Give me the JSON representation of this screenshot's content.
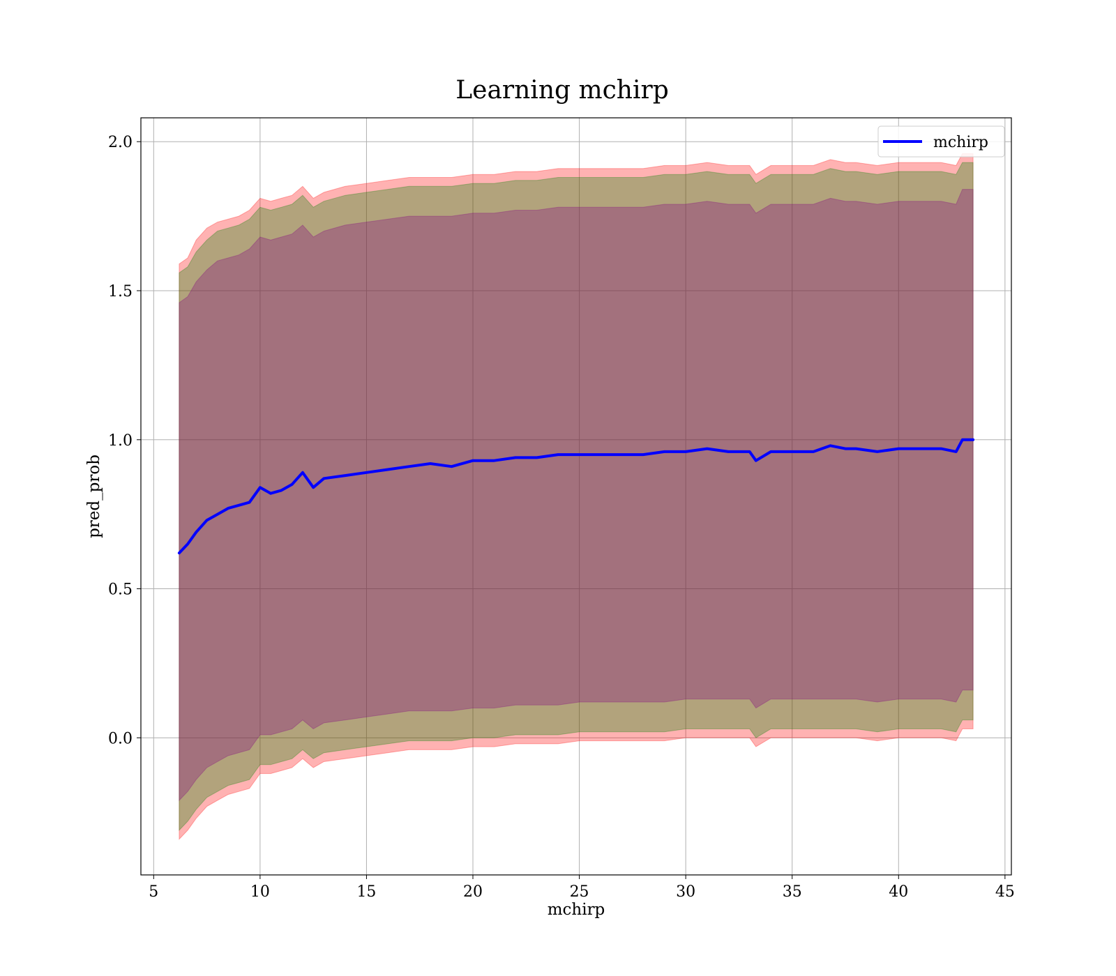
{
  "chart_data": {
    "type": "line",
    "title": "Learning mchirp",
    "xlabel": "mchirp",
    "ylabel": "pred_prob",
    "xlim": [
      4.4,
      45.3
    ],
    "ylim": [
      -0.46,
      2.08
    ],
    "xticks": [
      5,
      10,
      15,
      20,
      25,
      30,
      35,
      40,
      45
    ],
    "xtick_labels": [
      "5",
      "10",
      "15",
      "20",
      "25",
      "30",
      "35",
      "40",
      "45"
    ],
    "yticks": [
      0.0,
      0.5,
      1.0,
      1.5,
      2.0
    ],
    "ytick_labels": [
      "0.0",
      "0.5",
      "1.0",
      "1.5",
      "2.0"
    ],
    "grid": true,
    "legend": {
      "position": "upper right",
      "entries": [
        {
          "label": "mchirp",
          "color": "#0000ff"
        }
      ]
    },
    "series": [
      {
        "name": "mchirp",
        "color": "#0000ff",
        "x": [
          6.2,
          6.6,
          7.0,
          7.5,
          8.0,
          8.5,
          9.0,
          9.5,
          10.0,
          10.5,
          11.0,
          11.5,
          12.0,
          12.5,
          13.0,
          14.0,
          15.0,
          16.0,
          17.0,
          18.0,
          19.0,
          20.0,
          21.0,
          22.0,
          23.0,
          24.0,
          25.0,
          26.0,
          27.0,
          28.0,
          29.0,
          30.0,
          31.0,
          32.0,
          33.0,
          33.3,
          34.0,
          35.0,
          36.0,
          36.8,
          37.5,
          38.0,
          39.0,
          40.0,
          41.0,
          42.0,
          42.7,
          43.0,
          43.5
        ],
        "y": [
          0.62,
          0.65,
          0.69,
          0.73,
          0.75,
          0.77,
          0.78,
          0.79,
          0.84,
          0.82,
          0.83,
          0.85,
          0.89,
          0.84,
          0.87,
          0.88,
          0.89,
          0.9,
          0.91,
          0.92,
          0.91,
          0.93,
          0.93,
          0.94,
          0.94,
          0.95,
          0.95,
          0.95,
          0.95,
          0.95,
          0.96,
          0.96,
          0.97,
          0.96,
          0.96,
          0.93,
          0.96,
          0.96,
          0.96,
          0.98,
          0.97,
          0.97,
          0.96,
          0.97,
          0.97,
          0.97,
          0.96,
          1.0,
          1.0
        ]
      },
      {
        "name": "",
        "type": "band",
        "color": "#ff0000",
        "opacity": 0.3,
        "x": [
          6.2,
          6.6,
          7.0,
          7.5,
          8.0,
          8.5,
          9.0,
          9.5,
          10.0,
          10.5,
          11.0,
          11.5,
          12.0,
          12.5,
          13.0,
          14.0,
          15.0,
          16.0,
          17.0,
          18.0,
          19.0,
          20.0,
          21.0,
          22.0,
          23.0,
          24.0,
          25.0,
          26.0,
          27.0,
          28.0,
          29.0,
          30.0,
          31.0,
          32.0,
          33.0,
          33.3,
          34.0,
          35.0,
          36.0,
          36.8,
          37.5,
          38.0,
          39.0,
          40.0,
          41.0,
          42.0,
          42.7,
          43.0,
          43.5
        ],
        "upper": [
          1.59,
          1.61,
          1.67,
          1.71,
          1.73,
          1.74,
          1.75,
          1.77,
          1.81,
          1.8,
          1.81,
          1.82,
          1.85,
          1.81,
          1.83,
          1.85,
          1.86,
          1.87,
          1.88,
          1.88,
          1.88,
          1.89,
          1.89,
          1.9,
          1.9,
          1.91,
          1.91,
          1.91,
          1.91,
          1.91,
          1.92,
          1.92,
          1.93,
          1.92,
          1.92,
          1.89,
          1.92,
          1.92,
          1.92,
          1.94,
          1.93,
          1.93,
          1.92,
          1.93,
          1.93,
          1.93,
          1.92,
          1.96,
          1.96
        ],
        "lower": [
          -0.34,
          -0.31,
          -0.27,
          -0.23,
          -0.21,
          -0.19,
          -0.18,
          -0.17,
          -0.12,
          -0.12,
          -0.11,
          -0.1,
          -0.07,
          -0.1,
          -0.08,
          -0.07,
          -0.06,
          -0.05,
          -0.04,
          -0.04,
          -0.04,
          -0.03,
          -0.03,
          -0.02,
          -0.02,
          -0.02,
          -0.01,
          -0.01,
          -0.01,
          -0.01,
          -0.01,
          0.0,
          0.0,
          0.0,
          0.0,
          -0.03,
          0.0,
          0.0,
          0.0,
          0.0,
          0.0,
          0.0,
          -0.01,
          0.0,
          0.0,
          0.0,
          -0.01,
          0.03,
          0.03
        ]
      },
      {
        "name": "",
        "type": "band",
        "color": "#008000",
        "opacity": 0.3,
        "x": [
          6.2,
          6.6,
          7.0,
          7.5,
          8.0,
          8.5,
          9.0,
          9.5,
          10.0,
          10.5,
          11.0,
          11.5,
          12.0,
          12.5,
          13.0,
          14.0,
          15.0,
          16.0,
          17.0,
          18.0,
          19.0,
          20.0,
          21.0,
          22.0,
          23.0,
          24.0,
          25.0,
          26.0,
          27.0,
          28.0,
          29.0,
          30.0,
          31.0,
          32.0,
          33.0,
          33.3,
          34.0,
          35.0,
          36.0,
          36.8,
          37.5,
          38.0,
          39.0,
          40.0,
          41.0,
          42.0,
          42.7,
          43.0,
          43.5
        ],
        "upper": [
          1.56,
          1.58,
          1.63,
          1.67,
          1.7,
          1.71,
          1.72,
          1.74,
          1.78,
          1.77,
          1.78,
          1.79,
          1.82,
          1.78,
          1.8,
          1.82,
          1.83,
          1.84,
          1.85,
          1.85,
          1.85,
          1.86,
          1.86,
          1.87,
          1.87,
          1.88,
          1.88,
          1.88,
          1.88,
          1.88,
          1.89,
          1.89,
          1.9,
          1.89,
          1.89,
          1.86,
          1.89,
          1.89,
          1.89,
          1.91,
          1.9,
          1.9,
          1.89,
          1.9,
          1.9,
          1.9,
          1.89,
          1.93,
          1.93
        ],
        "lower": [
          -0.31,
          -0.28,
          -0.24,
          -0.2,
          -0.18,
          -0.16,
          -0.15,
          -0.14,
          -0.09,
          -0.09,
          -0.08,
          -0.07,
          -0.04,
          -0.07,
          -0.05,
          -0.04,
          -0.03,
          -0.02,
          -0.01,
          -0.01,
          -0.01,
          0.0,
          0.0,
          0.01,
          0.01,
          0.01,
          0.02,
          0.02,
          0.02,
          0.02,
          0.02,
          0.03,
          0.03,
          0.03,
          0.03,
          0.0,
          0.03,
          0.03,
          0.03,
          0.03,
          0.03,
          0.03,
          0.02,
          0.03,
          0.03,
          0.03,
          0.02,
          0.06,
          0.06
        ]
      },
      {
        "name": "",
        "type": "band",
        "color": "#800080",
        "opacity": 0.3,
        "x": [
          6.2,
          6.6,
          7.0,
          7.5,
          8.0,
          8.5,
          9.0,
          9.5,
          10.0,
          10.5,
          11.0,
          11.5,
          12.0,
          12.5,
          13.0,
          14.0,
          15.0,
          16.0,
          17.0,
          18.0,
          19.0,
          20.0,
          21.0,
          22.0,
          23.0,
          24.0,
          25.0,
          26.0,
          27.0,
          28.0,
          29.0,
          30.0,
          31.0,
          32.0,
          33.0,
          33.3,
          34.0,
          35.0,
          36.0,
          36.8,
          37.5,
          38.0,
          39.0,
          40.0,
          41.0,
          42.0,
          42.7,
          43.0,
          43.5
        ],
        "upper": [
          1.46,
          1.48,
          1.53,
          1.57,
          1.6,
          1.61,
          1.62,
          1.64,
          1.68,
          1.67,
          1.68,
          1.69,
          1.72,
          1.68,
          1.7,
          1.72,
          1.73,
          1.74,
          1.75,
          1.75,
          1.75,
          1.76,
          1.76,
          1.77,
          1.77,
          1.78,
          1.78,
          1.78,
          1.78,
          1.78,
          1.79,
          1.79,
          1.8,
          1.79,
          1.79,
          1.76,
          1.79,
          1.79,
          1.79,
          1.81,
          1.8,
          1.8,
          1.79,
          1.8,
          1.8,
          1.8,
          1.79,
          1.84,
          1.84
        ],
        "lower": [
          -0.21,
          -0.18,
          -0.14,
          -0.1,
          -0.08,
          -0.06,
          -0.05,
          -0.04,
          0.01,
          0.01,
          0.02,
          0.03,
          0.06,
          0.03,
          0.05,
          0.06,
          0.07,
          0.08,
          0.09,
          0.09,
          0.09,
          0.1,
          0.1,
          0.11,
          0.11,
          0.11,
          0.12,
          0.12,
          0.12,
          0.12,
          0.12,
          0.13,
          0.13,
          0.13,
          0.13,
          0.1,
          0.13,
          0.13,
          0.13,
          0.13,
          0.13,
          0.13,
          0.12,
          0.13,
          0.13,
          0.13,
          0.12,
          0.16,
          0.16
        ]
      }
    ]
  }
}
